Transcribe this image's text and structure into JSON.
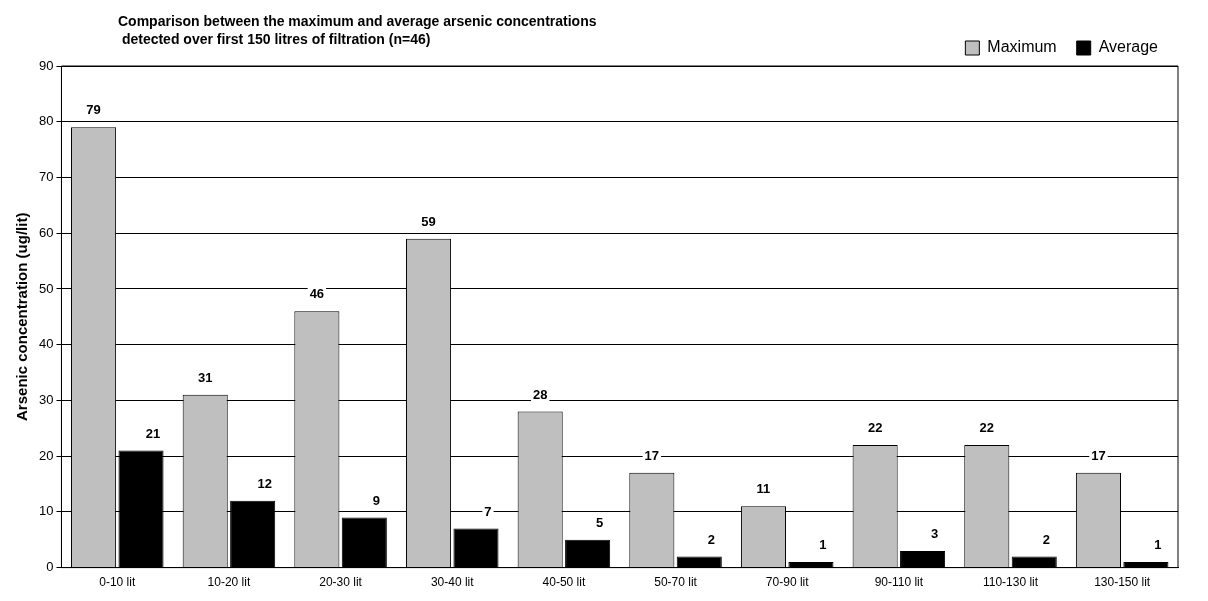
{
  "chart_data": {
    "type": "bar",
    "title": "Comparison between the maximum and average arsenic concentrations\n detected over first 150 litres of filtration (n=46)",
    "ylabel": "Arsenic concentration (ug/lit)",
    "categories": [
      "0-10 lit",
      "10-20 lit",
      "20-30 lit",
      "30-40 lit",
      "40-50 lit",
      "50-70 lit",
      "70-90 lit",
      "90-110 lit",
      "110-130 lit",
      "130-150 lit"
    ],
    "series": [
      {
        "name": "Maximum",
        "color": "#bfbfbf",
        "values": [
          79,
          31,
          46,
          59,
          28,
          17,
          11,
          22,
          22,
          17
        ]
      },
      {
        "name": "Average",
        "color": "#000000",
        "values": [
          21,
          12,
          9,
          7,
          5,
          2,
          1,
          3,
          2,
          1
        ]
      }
    ],
    "ylim": [
      0,
      90
    ],
    "yticks": [
      0,
      10,
      20,
      30,
      40,
      50,
      60,
      70,
      80,
      90
    ],
    "grid": "y",
    "legend": "top right",
    "data_labels": true
  }
}
